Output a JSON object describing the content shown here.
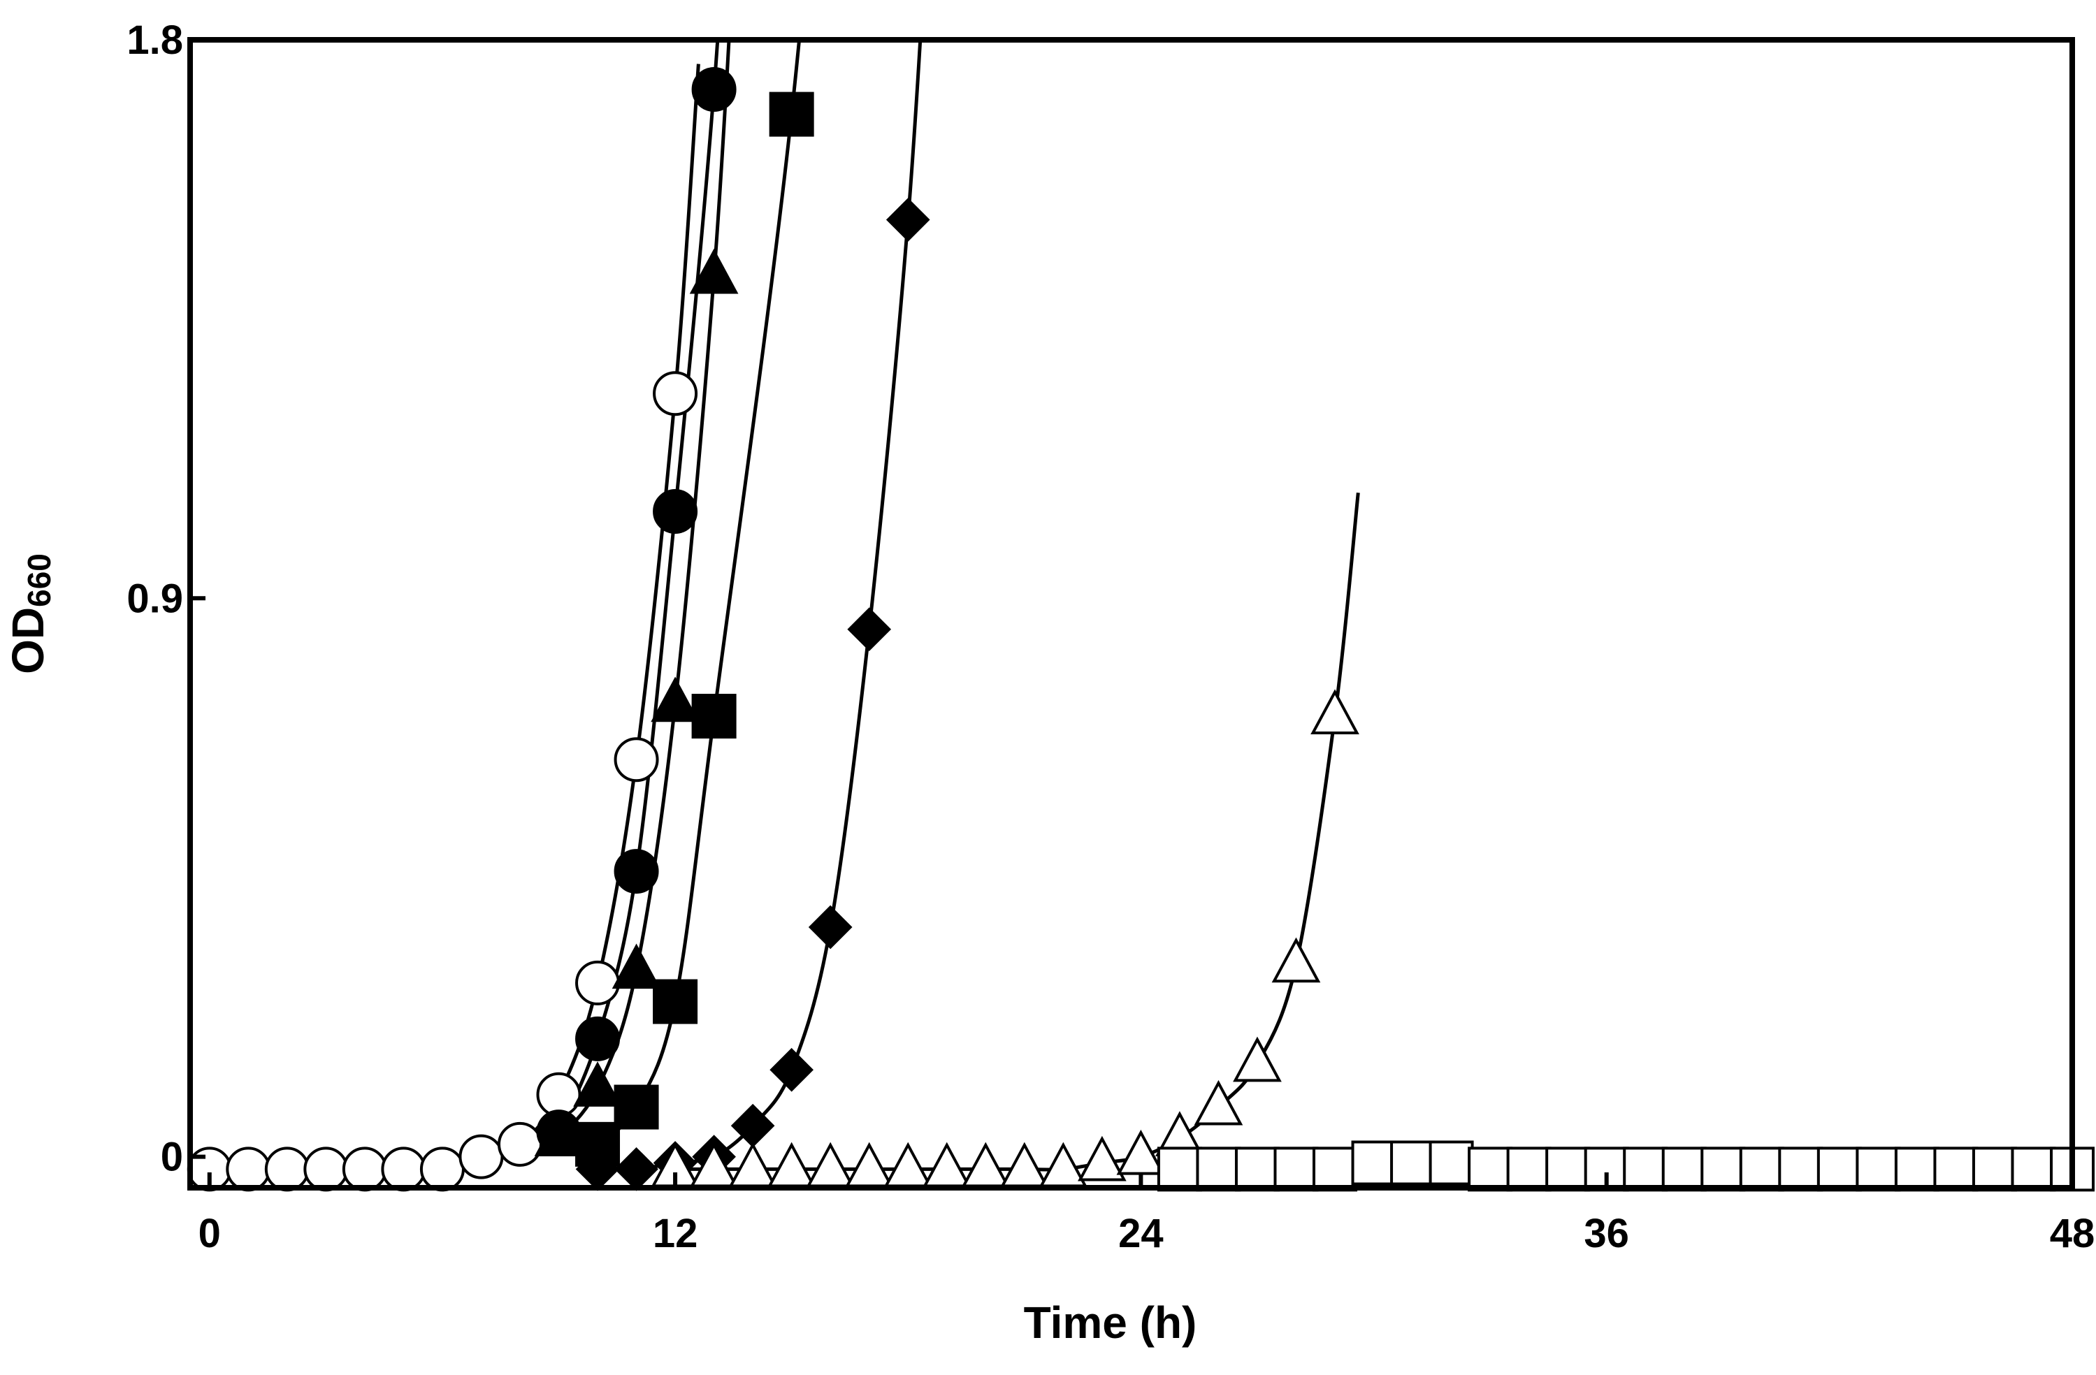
{
  "chart_data": {
    "type": "line",
    "title": "",
    "xlabel": "Time (h)",
    "ylabel": {
      "main": "OD",
      "subscript": "660"
    },
    "xlim": [
      -0.5,
      48
    ],
    "ylim": [
      -0.05,
      1.8
    ],
    "x_ticks": [
      {
        "value": 0,
        "label": "0"
      },
      {
        "value": 12,
        "label": "12"
      },
      {
        "value": 24,
        "label": "24"
      },
      {
        "value": 36,
        "label": "36"
      },
      {
        "value": 48,
        "label": "48"
      }
    ],
    "y_ticks": [
      {
        "value": 0,
        "label": "0"
      },
      {
        "value": 0.9,
        "label": "0.9"
      },
      {
        "value": 1.8,
        "label": "1.8"
      }
    ],
    "grid": false,
    "legend": "none",
    "series": [
      {
        "marker": "circle",
        "fill": "#ffffff",
        "x": [
          0,
          1,
          2,
          3,
          4,
          5,
          6,
          7,
          8,
          9,
          10,
          11,
          12
        ],
        "y": [
          -0.02,
          -0.02,
          -0.02,
          -0.02,
          -0.02,
          -0.02,
          -0.02,
          0.0,
          0.02,
          0.1,
          0.28,
          0.64,
          1.23
        ]
      },
      {
        "marker": "circle",
        "fill": "#000000",
        "x": [
          9,
          10,
          11,
          12,
          13
        ],
        "y": [
          0.04,
          0.19,
          0.46,
          1.04,
          1.72
        ]
      },
      {
        "marker": "triangle",
        "fill": "#000000",
        "x": [
          9,
          10,
          11,
          12,
          13
        ],
        "y": [
          0.03,
          0.11,
          0.3,
          0.73,
          1.42
        ]
      },
      {
        "marker": "square",
        "fill": "#000000",
        "x": [
          10,
          11,
          12,
          13,
          15
        ],
        "y": [
          0.02,
          0.08,
          0.25,
          0.71,
          1.68
        ]
      },
      {
        "marker": "diamond",
        "fill": "#000000",
        "x": [
          10,
          11,
          12,
          13,
          14,
          15,
          16,
          17,
          18
        ],
        "y": [
          -0.02,
          -0.02,
          -0.01,
          0.0,
          0.05,
          0.14,
          0.37,
          0.85,
          1.51
        ]
      },
      {
        "marker": "triangle",
        "fill": "#ffffff",
        "x": [
          12,
          13,
          14,
          15,
          16,
          17,
          18,
          19,
          20,
          21,
          22,
          23,
          24,
          25,
          26,
          27,
          28,
          29
        ],
        "y": [
          -0.02,
          -0.02,
          -0.02,
          -0.02,
          -0.02,
          -0.02,
          -0.02,
          -0.02,
          -0.02,
          -0.02,
          -0.02,
          -0.01,
          0.0,
          0.03,
          0.08,
          0.15,
          0.31,
          0.71
        ]
      },
      {
        "marker": "square",
        "fill": "#ffffff",
        "x": [
          25,
          26,
          27,
          28,
          29,
          30,
          31,
          32,
          33,
          34,
          35,
          36,
          37,
          38,
          39,
          40,
          41,
          42,
          43,
          44,
          45,
          46,
          47,
          48
        ],
        "y": [
          -0.02,
          -0.02,
          -0.02,
          -0.02,
          -0.02,
          -0.01,
          -0.01,
          -0.01,
          -0.02,
          -0.02,
          -0.02,
          -0.02,
          -0.02,
          -0.02,
          -0.02,
          -0.02,
          -0.02,
          -0.02,
          -0.02,
          -0.02,
          -0.02,
          -0.02,
          -0.02,
          -0.02
        ]
      }
    ]
  }
}
